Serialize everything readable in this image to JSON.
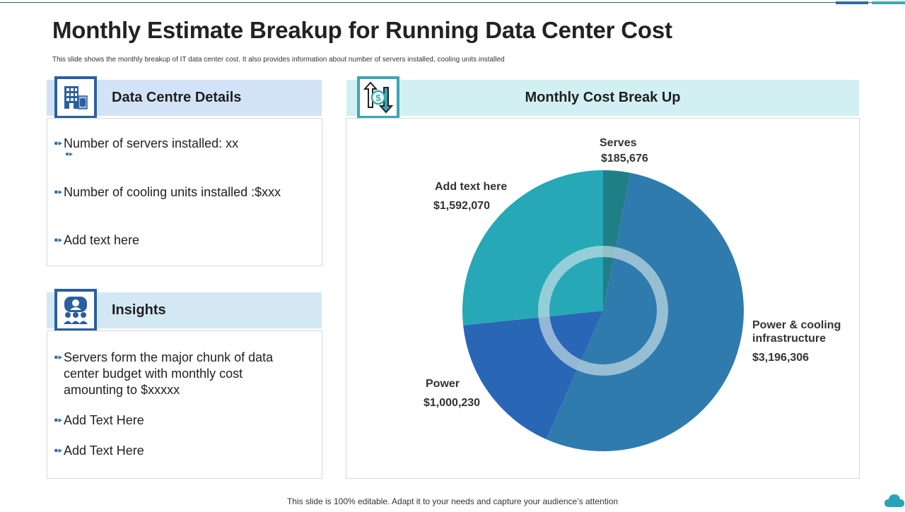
{
  "header": {
    "title": "Monthly Estimate Breakup for Running Data Center Cost",
    "subtitle": "This slide shows the monthly breakup of IT data center cost. It also provides information about number of servers installed, cooling units installed"
  },
  "data_centre": {
    "heading": "Data Centre Details",
    "icon": "building-server-icon",
    "bullets": [
      "Number of servers installed: xx",
      "Number of cooling units installed :$xxx",
      "Add text here"
    ]
  },
  "insights": {
    "heading": "Insights",
    "icon": "team-insights-icon",
    "bullets": [
      "Servers form the major chunk of data center budget with monthly cost amounting to $xxxxx",
      "Add Text Here",
      "Add Text Here"
    ]
  },
  "cost_panel": {
    "heading": "Monthly Cost Break Up",
    "icon": "dollar-exchange-icon"
  },
  "chart_data": {
    "type": "pie",
    "title": "Monthly Cost Break Up",
    "start_angle_deg": 0,
    "direction": "clockwise",
    "slices": [
      {
        "label": "Serves",
        "value": 185676,
        "value_label": "$185,676",
        "color": "#1f7f87"
      },
      {
        "label": "Power & cooling infrastructure",
        "value": 3196306,
        "value_label": "$3,196,306",
        "color": "#2f7bad"
      },
      {
        "label": "Power",
        "value": 1000230,
        "value_label": "$1,000,230",
        "color": "#2a66b6"
      },
      {
        "label": "Add text here",
        "value": 1592070,
        "value_label": "$1,592,070",
        "color": "#26a8b6"
      }
    ],
    "label_lines": [
      [
        "Serves"
      ],
      [
        "Power & cooling",
        "infrastructure"
      ],
      [
        "Power"
      ],
      [
        "Add text here"
      ]
    ],
    "center_ring_color": "#cfe3ea"
  },
  "footer": {
    "text": "This slide is 100% editable. Adapt it to your needs and capture your audience’s attention"
  },
  "colors": {
    "accent_dark": "#2a5f9e",
    "accent_teal": "#3aa7b5",
    "bullet": "#2e6da4"
  }
}
